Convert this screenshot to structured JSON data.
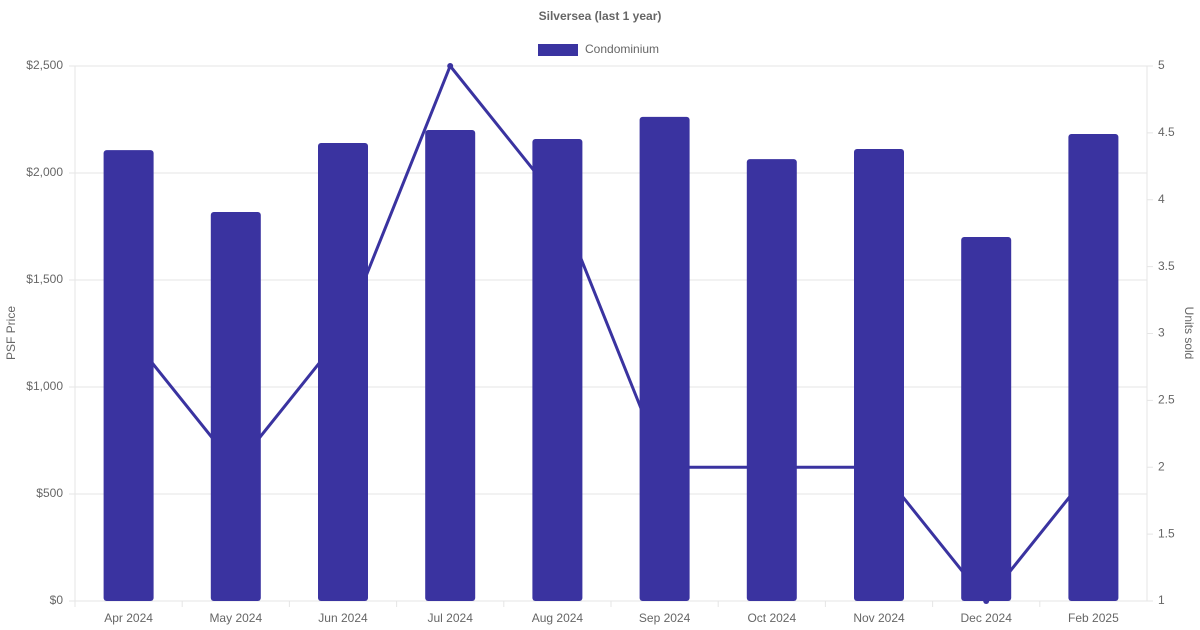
{
  "chart_data": {
    "type": "bar-line",
    "title": "Silversea (last 1 year)",
    "categories": [
      "Apr 2024",
      "May 2024",
      "Jun 2024",
      "Jul 2024",
      "Aug 2024",
      "Sep 2024",
      "Oct 2024",
      "Nov 2024",
      "Dec 2024",
      "Feb 2025"
    ],
    "series": [
      {
        "name": "Condominium",
        "type": "bar",
        "color": "#3a33a0",
        "values": [
          2107,
          1818,
          2140,
          2201,
          2159,
          2262,
          2065,
          2112,
          1701,
          2182
        ]
      },
      {
        "type": "line",
        "axis": "y2",
        "color": "#3a33a0",
        "values": [
          3,
          2,
          3,
          5,
          4,
          2,
          2,
          2,
          1,
          2
        ]
      }
    ],
    "ylabel": "PSF Price",
    "y2label": "Units sold",
    "ylim": [
      0,
      2500
    ],
    "yticks": [
      {
        "value": 0,
        "label": "$0"
      },
      {
        "value": 500,
        "label": "$500"
      },
      {
        "value": 1000,
        "label": "$1,000"
      },
      {
        "value": 1500,
        "label": "$1,500"
      },
      {
        "value": 2000,
        "label": "$2,000"
      },
      {
        "value": 2500,
        "label": "$2,500"
      }
    ],
    "y2lim": [
      1,
      5
    ],
    "y2ticks": [
      1,
      1.5,
      2,
      2.5,
      3,
      3.5,
      4,
      4.5,
      5
    ],
    "grid": true
  }
}
